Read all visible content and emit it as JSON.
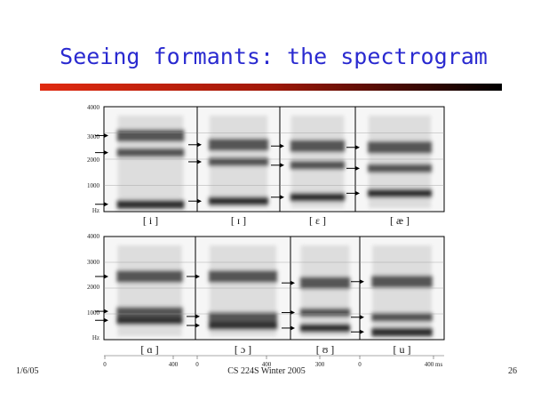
{
  "title": "Seeing formants: the spectrogram",
  "top_row": {
    "yticks": [
      "4000",
      "3000",
      "2000",
      "1000",
      "Hz"
    ],
    "vowels": [
      "[ i ]",
      "[ ɪ ]",
      "[ ɛ ]",
      "[ æ ]"
    ]
  },
  "bottom_row": {
    "yticks": [
      "4000",
      "3000",
      "2000",
      "1000",
      "Hz"
    ],
    "vowels": [
      "[ ɑ ]",
      "[ ɔ ]",
      "[ ʊ ]",
      "[ u ]"
    ]
  },
  "time_axis": [
    "0",
    "400",
    "0",
    "400",
    "300",
    "0",
    "400 ms"
  ],
  "footer": {
    "date": "1/6/05",
    "course": "CS 224S Winter 2005",
    "page": "26"
  }
}
